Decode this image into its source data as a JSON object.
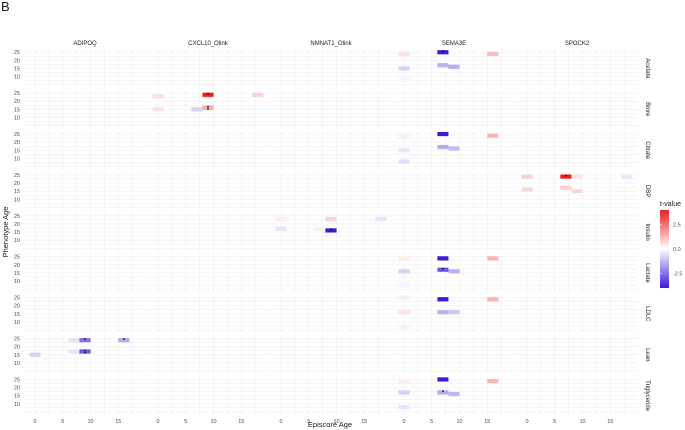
{
  "figure_label": "B",
  "colors": {
    "high": "#e8201f",
    "mid": "#ffffff",
    "low": "#3b1bd9",
    "grid": "#ececec"
  },
  "chart_data": {
    "type": "heatmap",
    "title": "",
    "xlabel": "Episcore Age",
    "ylabel": "Phenotype Age",
    "x_ticks": [
      "0",
      "5",
      "10",
      "15"
    ],
    "y_ticks": [
      "25",
      "20",
      "15",
      "10"
    ],
    "columns": [
      "ADIPOQ",
      "CXCL10_Olink",
      "NMNAT1_Olink",
      "SEMA3E",
      "SPOCK2"
    ],
    "rows": [
      "Acetate",
      "Bmre",
      "Citrate",
      "DBP",
      "Insulin",
      "Lactate",
      "LDLC",
      "Lean",
      "Triglyceride"
    ],
    "legend": {
      "title": "t-value",
      "ticks": [
        "2.5",
        "0.0",
        "-2.5"
      ],
      "range": [
        -4,
        4
      ]
    },
    "cells": [
      {
        "col": "SEMA3E",
        "row": "Acetate",
        "x": 0,
        "y": 24,
        "w": 2,
        "t": 0.5
      },
      {
        "col": "SEMA3E",
        "row": "Acetate",
        "x": 7,
        "y": 25,
        "w": 2,
        "t": -4,
        "sig": 1
      },
      {
        "col": "SEMA3E",
        "row": "Acetate",
        "x": 16,
        "y": 24,
        "w": 2,
        "t": 1.2
      },
      {
        "col": "SEMA3E",
        "row": "Acetate",
        "x": 0,
        "y": 15,
        "w": 2,
        "t": -0.8
      },
      {
        "col": "SEMA3E",
        "row": "Acetate",
        "x": 7,
        "y": 17,
        "w": 2,
        "t": -1.4
      },
      {
        "col": "SEMA3E",
        "row": "Acetate",
        "x": 9,
        "y": 16,
        "w": 2,
        "t": -1.4
      },
      {
        "col": "SEMA3E",
        "row": "Acetate",
        "x": 0,
        "y": 8,
        "w": 2,
        "t": -0.2
      },
      {
        "col": "CXCL10_Olink",
        "row": "Bmre",
        "x": 0,
        "y": 23,
        "w": 2,
        "t": 0.6
      },
      {
        "col": "CXCL10_Olink",
        "row": "Bmre",
        "x": 9,
        "y": 24,
        "w": 2,
        "t": 4,
        "sig": 1
      },
      {
        "col": "CXCL10_Olink",
        "row": "Bmre",
        "x": 18,
        "y": 24,
        "w": 2,
        "t": 0.8
      },
      {
        "col": "CXCL10_Olink",
        "row": "Bmre",
        "x": 0,
        "y": 15,
        "w": 2,
        "t": 0.5
      },
      {
        "col": "CXCL10_Olink",
        "row": "Bmre",
        "x": 7,
        "y": 15,
        "w": 2,
        "t": -0.8
      },
      {
        "col": "CXCL10_Olink",
        "row": "Bmre",
        "x": 9,
        "y": 16,
        "w": 2,
        "t": 1.5,
        "sig": 2
      },
      {
        "col": "SEMA3E",
        "row": "Citrate",
        "x": 0,
        "y": 24,
        "w": 2,
        "t": 0.3
      },
      {
        "col": "SEMA3E",
        "row": "Citrate",
        "x": 7,
        "y": 25,
        "w": 2,
        "t": -4
      },
      {
        "col": "SEMA3E",
        "row": "Citrate",
        "x": 16,
        "y": 24,
        "w": 2,
        "t": 1.3
      },
      {
        "col": "SEMA3E",
        "row": "Citrate",
        "x": 0,
        "y": 15,
        "w": 2,
        "t": -0.4
      },
      {
        "col": "SEMA3E",
        "row": "Citrate",
        "x": 7,
        "y": 17,
        "w": 2,
        "t": -1.5
      },
      {
        "col": "SEMA3E",
        "row": "Citrate",
        "x": 9,
        "y": 16,
        "w": 2,
        "t": -1.2
      },
      {
        "col": "SEMA3E",
        "row": "Citrate",
        "x": 0,
        "y": 8,
        "w": 2,
        "t": -0.6
      },
      {
        "col": "SPOCK2",
        "row": "DBP",
        "x": 0,
        "y": 24,
        "w": 2,
        "t": 0.8
      },
      {
        "col": "SPOCK2",
        "row": "DBP",
        "x": 7,
        "y": 24,
        "w": 2,
        "t": 4,
        "sig": 1
      },
      {
        "col": "SPOCK2",
        "row": "DBP",
        "x": 9,
        "y": 24,
        "w": 2,
        "t": 0.5
      },
      {
        "col": "SPOCK2",
        "row": "DBP",
        "x": 18,
        "y": 24,
        "w": 2,
        "t": -0.4
      },
      {
        "col": "SPOCK2",
        "row": "DBP",
        "x": 0,
        "y": 16,
        "w": 2,
        "t": 0.7
      },
      {
        "col": "SPOCK2",
        "row": "DBP",
        "x": 7,
        "y": 17,
        "w": 2,
        "t": 0.8
      },
      {
        "col": "SPOCK2",
        "row": "DBP",
        "x": 9,
        "y": 15,
        "w": 2,
        "t": 0.7
      },
      {
        "col": "NMNAT1_Olink",
        "row": "Insulin",
        "x": 0,
        "y": 23,
        "w": 2,
        "t": 0.3
      },
      {
        "col": "NMNAT1_Olink",
        "row": "Insulin",
        "x": 9,
        "y": 23,
        "w": 2,
        "t": 0.8
      },
      {
        "col": "NMNAT1_Olink",
        "row": "Insulin",
        "x": 18,
        "y": 23,
        "w": 2,
        "t": -0.5
      },
      {
        "col": "NMNAT1_Olink",
        "row": "Insulin",
        "x": 0,
        "y": 17,
        "w": 2,
        "t": -0.5
      },
      {
        "col": "NMNAT1_Olink",
        "row": "Insulin",
        "x": 7,
        "y": 17,
        "w": 2,
        "t": 0.3
      },
      {
        "col": "NMNAT1_Olink",
        "row": "Insulin",
        "x": 9,
        "y": 16,
        "w": 2,
        "t": -4,
        "sig": 1
      },
      {
        "col": "SEMA3E",
        "row": "Lactate",
        "x": 0,
        "y": 24,
        "w": 2,
        "t": 0.3
      },
      {
        "col": "SEMA3E",
        "row": "Lactate",
        "x": 7,
        "y": 24,
        "w": 2,
        "t": -4
      },
      {
        "col": "SEMA3E",
        "row": "Lactate",
        "x": 16,
        "y": 24,
        "w": 2,
        "t": 1.3
      },
      {
        "col": "SEMA3E",
        "row": "Lactate",
        "x": 0,
        "y": 16,
        "w": 2,
        "t": -0.8
      },
      {
        "col": "SEMA3E",
        "row": "Lactate",
        "x": 7,
        "y": 17,
        "w": 2,
        "t": -3,
        "sig": 1
      },
      {
        "col": "SEMA3E",
        "row": "Lactate",
        "x": 9,
        "y": 16,
        "w": 2,
        "t": -1.4
      },
      {
        "col": "SEMA3E",
        "row": "Lactate",
        "x": 0,
        "y": 8,
        "w": 2,
        "t": -0.2
      },
      {
        "col": "SEMA3E",
        "row": "LDLC",
        "x": 0,
        "y": 25,
        "w": 2,
        "t": 0.3
      },
      {
        "col": "SEMA3E",
        "row": "LDLC",
        "x": 7,
        "y": 24,
        "w": 2,
        "t": -4
      },
      {
        "col": "SEMA3E",
        "row": "LDLC",
        "x": 16,
        "y": 24,
        "w": 2,
        "t": 1.3
      },
      {
        "col": "SEMA3E",
        "row": "LDLC",
        "x": 0,
        "y": 16,
        "w": 2,
        "t": 0.5
      },
      {
        "col": "SEMA3E",
        "row": "LDLC",
        "x": 7,
        "y": 16,
        "w": 2,
        "t": -1.4
      },
      {
        "col": "SEMA3E",
        "row": "LDLC",
        "x": 9,
        "y": 16,
        "w": 2,
        "t": -1.0
      },
      {
        "col": "SEMA3E",
        "row": "LDLC",
        "x": 0,
        "y": 7,
        "w": 2,
        "t": -0.2
      },
      {
        "col": "ADIPOQ",
        "row": "Lean",
        "x": 7,
        "y": 24,
        "w": 2,
        "t": -0.5
      },
      {
        "col": "ADIPOQ",
        "row": "Lean",
        "x": 9,
        "y": 24,
        "w": 2,
        "t": -2.5,
        "sig": 1
      },
      {
        "col": "ADIPOQ",
        "row": "Lean",
        "x": 16,
        "y": 24,
        "w": 2,
        "t": -1.5,
        "sig": 1
      },
      {
        "col": "ADIPOQ",
        "row": "Lean",
        "x": 0,
        "y": 15,
        "w": 2,
        "t": -0.8
      },
      {
        "col": "ADIPOQ",
        "row": "Lean",
        "x": 7,
        "y": 17,
        "w": 2,
        "t": -0.5
      },
      {
        "col": "ADIPOQ",
        "row": "Lean",
        "x": 9,
        "y": 17,
        "w": 2,
        "t": -3,
        "sig": 2
      },
      {
        "col": "SEMA3E",
        "row": "Triglyceride",
        "x": 0,
        "y": 24,
        "w": 2,
        "t": 0.3
      },
      {
        "col": "SEMA3E",
        "row": "Triglyceride",
        "x": 7,
        "y": 25,
        "w": 2,
        "t": -4
      },
      {
        "col": "SEMA3E",
        "row": "Triglyceride",
        "x": 16,
        "y": 24,
        "w": 2,
        "t": 1.3
      },
      {
        "col": "SEMA3E",
        "row": "Triglyceride",
        "x": 0,
        "y": 17,
        "w": 2,
        "t": -0.8
      },
      {
        "col": "SEMA3E",
        "row": "Triglyceride",
        "x": 7,
        "y": 17,
        "w": 2,
        "t": -1.5,
        "sig": 1
      },
      {
        "col": "SEMA3E",
        "row": "Triglyceride",
        "x": 9,
        "y": 16,
        "w": 2,
        "t": -1.3
      },
      {
        "col": "SEMA3E",
        "row": "Triglyceride",
        "x": 0,
        "y": 8,
        "w": 2,
        "t": -0.5
      }
    ]
  }
}
